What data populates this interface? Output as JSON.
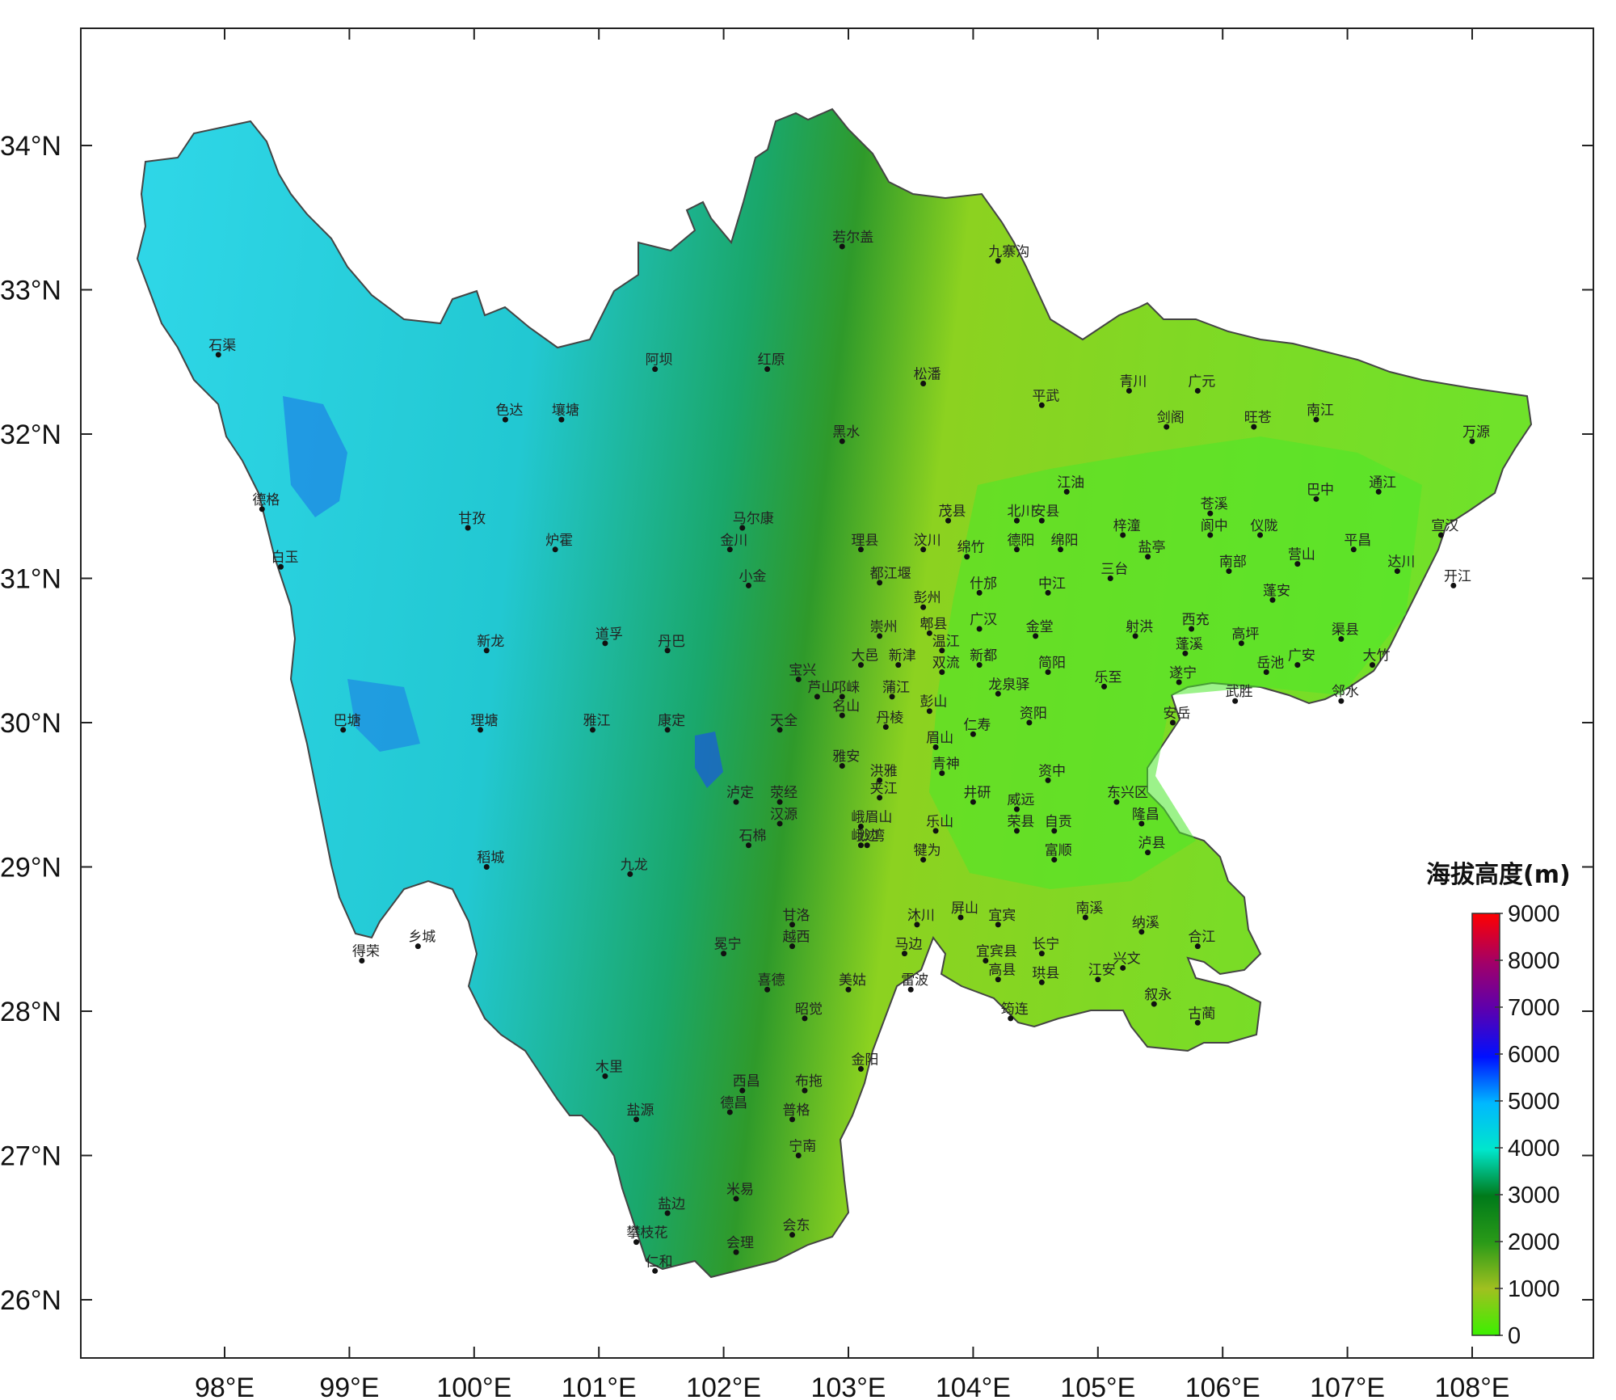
{
  "map": {
    "latitude_labels": [
      "34°N",
      "33°N",
      "32°N",
      "31°N",
      "30°N",
      "29°N",
      "28°N",
      "27°N",
      "26°N"
    ],
    "longitude_labels": [
      "98°E",
      "99°E",
      "100°E",
      "101°E",
      "102°E",
      "103°E",
      "104°E",
      "105°E",
      "106°E",
      "107°E",
      "108°E"
    ],
    "legend": {
      "title": "海拔高度(m)",
      "ticks": [
        "9000",
        "8000",
        "7000",
        "6000",
        "5000",
        "4000",
        "3000",
        "2000",
        "1000",
        "0"
      ],
      "colors": [
        "#ff0000",
        "#a0006a",
        "#5a00b0",
        "#0010ff",
        "#00b8ff",
        "#00e6cc",
        "#007a1a",
        "#2a9a18",
        "#a0c020",
        "#3cf000"
      ]
    },
    "place_labels": [
      {
        "name": "石渠",
        "lon": 97.95,
        "lat": 32.55
      },
      {
        "name": "德格",
        "lon": 98.3,
        "lat": 31.48
      },
      {
        "name": "白玉",
        "lon": 98.45,
        "lat": 31.08
      },
      {
        "name": "色达",
        "lon": 100.25,
        "lat": 32.1
      },
      {
        "name": "壤塘",
        "lon": 100.7,
        "lat": 32.1
      },
      {
        "name": "阿坝",
        "lon": 101.45,
        "lat": 32.45
      },
      {
        "name": "红原",
        "lon": 102.35,
        "lat": 32.45
      },
      {
        "name": "若尔盖",
        "lon": 102.95,
        "lat": 33.3
      },
      {
        "name": "九寨沟",
        "lon": 104.2,
        "lat": 33.2
      },
      {
        "name": "松潘",
        "lon": 103.6,
        "lat": 32.35
      },
      {
        "name": "黑水",
        "lon": 102.95,
        "lat": 31.95
      },
      {
        "name": "平武",
        "lon": 104.55,
        "lat": 32.2
      },
      {
        "name": "青川",
        "lon": 105.25,
        "lat": 32.3
      },
      {
        "name": "广元",
        "lon": 105.8,
        "lat": 32.3
      },
      {
        "name": "剑阁",
        "lon": 105.55,
        "lat": 32.05
      },
      {
        "name": "旺苍",
        "lon": 106.25,
        "lat": 32.05
      },
      {
        "name": "南江",
        "lon": 106.75,
        "lat": 32.1
      },
      {
        "name": "万源",
        "lon": 108.0,
        "lat": 31.95
      },
      {
        "name": "甘孜",
        "lon": 99.95,
        "lat": 31.35
      },
      {
        "name": "炉霍",
        "lon": 100.65,
        "lat": 31.2
      },
      {
        "name": "马尔康",
        "lon": 102.15,
        "lat": 31.35
      },
      {
        "name": "金川",
        "lon": 102.05,
        "lat": 31.2
      },
      {
        "name": "理县",
        "lon": 103.1,
        "lat": 31.2
      },
      {
        "name": "茂县",
        "lon": 103.8,
        "lat": 31.4
      },
      {
        "name": "汶川",
        "lon": 103.6,
        "lat": 31.2
      },
      {
        "name": "北川",
        "lon": 104.35,
        "lat": 31.4
      },
      {
        "name": "江油",
        "lon": 104.75,
        "lat": 31.6
      },
      {
        "name": "安县",
        "lon": 104.55,
        "lat": 31.4
      },
      {
        "name": "梓潼",
        "lon": 105.2,
        "lat": 31.3
      },
      {
        "name": "苍溪",
        "lon": 105.9,
        "lat": 31.45
      },
      {
        "name": "阆中",
        "lon": 105.9,
        "lat": 31.3
      },
      {
        "name": "巴中",
        "lon": 106.75,
        "lat": 31.55
      },
      {
        "name": "通江",
        "lon": 107.25,
        "lat": 31.6
      },
      {
        "name": "仪陇",
        "lon": 106.3,
        "lat": 31.3
      },
      {
        "name": "平昌",
        "lon": 107.05,
        "lat": 31.2
      },
      {
        "name": "宣汉",
        "lon": 107.75,
        "lat": 31.3
      },
      {
        "name": "德阳",
        "lon": 104.35,
        "lat": 31.2
      },
      {
        "name": "绵阳",
        "lon": 104.7,
        "lat": 31.2
      },
      {
        "name": "盐亭",
        "lon": 105.4,
        "lat": 31.15
      },
      {
        "name": "南部",
        "lon": 106.05,
        "lat": 31.05
      },
      {
        "name": "营山",
        "lon": 106.6,
        "lat": 31.1
      },
      {
        "name": "达川",
        "lon": 107.4,
        "lat": 31.05
      },
      {
        "name": "开江",
        "lon": 107.85,
        "lat": 30.95
      },
      {
        "name": "绵竹",
        "lon": 103.95,
        "lat": 31.15
      },
      {
        "name": "三台",
        "lon": 105.1,
        "lat": 31.0
      },
      {
        "name": "什邡",
        "lon": 104.05,
        "lat": 30.9
      },
      {
        "name": "中江",
        "lon": 104.6,
        "lat": 30.9
      },
      {
        "name": "蓬安",
        "lon": 106.4,
        "lat": 30.85
      },
      {
        "name": "小金",
        "lon": 102.2,
        "lat": 30.95
      },
      {
        "name": "都江堰",
        "lon": 103.25,
        "lat": 30.97
      },
      {
        "name": "彭州",
        "lon": 103.6,
        "lat": 30.8
      },
      {
        "name": "新龙",
        "lon": 100.1,
        "lat": 30.5
      },
      {
        "name": "道孚",
        "lon": 101.05,
        "lat": 30.55
      },
      {
        "name": "丹巴",
        "lon": 101.55,
        "lat": 30.5
      },
      {
        "name": "崇州",
        "lon": 103.25,
        "lat": 30.6
      },
      {
        "name": "郫县",
        "lon": 103.65,
        "lat": 30.62
      },
      {
        "name": "广汉",
        "lon": 104.05,
        "lat": 30.65
      },
      {
        "name": "金堂",
        "lon": 104.5,
        "lat": 30.6
      },
      {
        "name": "射洪",
        "lon": 105.3,
        "lat": 30.6
      },
      {
        "name": "西充",
        "lon": 105.75,
        "lat": 30.65
      },
      {
        "name": "蓬溪",
        "lon": 105.7,
        "lat": 30.48
      },
      {
        "name": "高坪",
        "lon": 106.15,
        "lat": 30.55
      },
      {
        "name": "渠县",
        "lon": 106.95,
        "lat": 30.58
      },
      {
        "name": "大竹",
        "lon": 107.2,
        "lat": 30.4
      },
      {
        "name": "温江",
        "lon": 103.75,
        "lat": 30.5
      },
      {
        "name": "大邑",
        "lon": 103.1,
        "lat": 30.4
      },
      {
        "name": "新津",
        "lon": 103.4,
        "lat": 30.4
      },
      {
        "name": "新都",
        "lon": 104.05,
        "lat": 30.4
      },
      {
        "name": "双流",
        "lon": 103.75,
        "lat": 30.35
      },
      {
        "name": "简阳",
        "lon": 104.6,
        "lat": 30.35
      },
      {
        "name": "岳池",
        "lon": 106.35,
        "lat": 30.35
      },
      {
        "name": "广安",
        "lon": 106.6,
        "lat": 30.4
      },
      {
        "name": "宝兴",
        "lon": 102.6,
        "lat": 30.3
      },
      {
        "name": "芦山",
        "lon": 102.75,
        "lat": 30.18
      },
      {
        "name": "邛崃",
        "lon": 102.95,
        "lat": 30.18
      },
      {
        "name": "蒲江",
        "lon": 103.35,
        "lat": 30.18
      },
      {
        "name": "龙泉驿",
        "lon": 104.2,
        "lat": 30.2
      },
      {
        "name": "乐至",
        "lon": 105.05,
        "lat": 30.25
      },
      {
        "name": "遂宁",
        "lon": 105.65,
        "lat": 30.28
      },
      {
        "name": "武胜",
        "lon": 106.1,
        "lat": 30.15
      },
      {
        "name": "邻水",
        "lon": 106.95,
        "lat": 30.15
      },
      {
        "name": "名山",
        "lon": 102.95,
        "lat": 30.05
      },
      {
        "name": "彭山",
        "lon": 103.65,
        "lat": 30.08
      },
      {
        "name": "丹棱",
        "lon": 103.3,
        "lat": 29.97
      },
      {
        "name": "资阳",
        "lon": 104.45,
        "lat": 30.0
      },
      {
        "name": "安岳",
        "lon": 105.6,
        "lat": 30.0
      },
      {
        "name": "巴塘",
        "lon": 98.95,
        "lat": 29.95
      },
      {
        "name": "理塘",
        "lon": 100.05,
        "lat": 29.95
      },
      {
        "name": "雅江",
        "lon": 100.95,
        "lat": 29.95
      },
      {
        "name": "康定",
        "lon": 101.55,
        "lat": 29.95
      },
      {
        "name": "天全",
        "lon": 102.45,
        "lat": 29.95
      },
      {
        "name": "仁寿",
        "lon": 104.0,
        "lat": 29.92
      },
      {
        "name": "眉山",
        "lon": 103.7,
        "lat": 29.83
      },
      {
        "name": "雅安",
        "lon": 102.95,
        "lat": 29.7
      },
      {
        "name": "洪雅",
        "lon": 103.25,
        "lat": 29.6
      },
      {
        "name": "青神",
        "lon": 103.75,
        "lat": 29.65
      },
      {
        "name": "资中",
        "lon": 104.6,
        "lat": 29.6
      },
      {
        "name": "泸定",
        "lon": 102.1,
        "lat": 29.45
      },
      {
        "name": "荥经",
        "lon": 102.45,
        "lat": 29.45
      },
      {
        "name": "夹江",
        "lon": 103.25,
        "lat": 29.48
      },
      {
        "name": "井研",
        "lon": 104.0,
        "lat": 29.45
      },
      {
        "name": "威远",
        "lon": 104.35,
        "lat": 29.4
      },
      {
        "name": "东兴区",
        "lon": 105.15,
        "lat": 29.45
      },
      {
        "name": "汉源",
        "lon": 102.45,
        "lat": 29.3
      },
      {
        "name": "峨边",
        "lon": 103.1,
        "lat": 29.15
      },
      {
        "name": "峨眉山",
        "lon": 103.1,
        "lat": 29.28
      },
      {
        "name": "乐山",
        "lon": 103.7,
        "lat": 29.25
      },
      {
        "name": "荣县",
        "lon": 104.35,
        "lat": 29.25
      },
      {
        "name": "自贡",
        "lon": 104.65,
        "lat": 29.25
      },
      {
        "name": "隆昌",
        "lon": 105.35,
        "lat": 29.3
      },
      {
        "name": "富顺",
        "lon": 104.65,
        "lat": 29.05
      },
      {
        "name": "沙湾",
        "lon": 103.15,
        "lat": 29.15
      },
      {
        "name": "犍为",
        "lon": 103.6,
        "lat": 29.05
      },
      {
        "name": "泸县",
        "lon": 105.4,
        "lat": 29.1
      },
      {
        "name": "稻城",
        "lon": 100.1,
        "lat": 29.0
      },
      {
        "name": "九龙",
        "lon": 101.25,
        "lat": 28.95
      },
      {
        "name": "石棉",
        "lon": 102.2,
        "lat": 29.15
      },
      {
        "name": "南溪",
        "lon": 104.9,
        "lat": 28.65
      },
      {
        "name": "沐川",
        "lon": 103.55,
        "lat": 28.6
      },
      {
        "name": "屏山",
        "lon": 103.9,
        "lat": 28.65
      },
      {
        "name": "宜宾",
        "lon": 104.2,
        "lat": 28.6
      },
      {
        "name": "甘洛",
        "lon": 102.55,
        "lat": 28.6
      },
      {
        "name": "乡城",
        "lon": 99.55,
        "lat": 28.45
      },
      {
        "name": "得荣",
        "lon": 99.1,
        "lat": 28.35
      },
      {
        "name": "纳溪",
        "lon": 105.35,
        "lat": 28.55
      },
      {
        "name": "合江",
        "lon": 105.8,
        "lat": 28.45
      },
      {
        "name": "越西",
        "lon": 102.55,
        "lat": 28.45
      },
      {
        "name": "马边",
        "lon": 103.45,
        "lat": 28.4
      },
      {
        "name": "长宁",
        "lon": 104.55,
        "lat": 28.4
      },
      {
        "name": "宜宾县",
        "lon": 104.1,
        "lat": 28.35
      },
      {
        "name": "兴文",
        "lon": 105.2,
        "lat": 28.3
      },
      {
        "name": "冕宁",
        "lon": 102.0,
        "lat": 28.4
      },
      {
        "name": "高县",
        "lon": 104.2,
        "lat": 28.22
      },
      {
        "name": "珙县",
        "lon": 104.55,
        "lat": 28.2
      },
      {
        "name": "江安",
        "lon": 105.0,
        "lat": 28.22
      },
      {
        "name": "喜德",
        "lon": 102.35,
        "lat": 28.15
      },
      {
        "name": "美姑",
        "lon": 103.0,
        "lat": 28.15
      },
      {
        "name": "雷波",
        "lon": 103.5,
        "lat": 28.15
      },
      {
        "name": "叙永",
        "lon": 105.45,
        "lat": 28.05
      },
      {
        "name": "昭觉",
        "lon": 102.65,
        "lat": 27.95
      },
      {
        "name": "筠连",
        "lon": 104.3,
        "lat": 27.95
      },
      {
        "name": "古蔺",
        "lon": 105.8,
        "lat": 27.92
      },
      {
        "name": "木里",
        "lon": 101.05,
        "lat": 27.55
      },
      {
        "name": "西昌",
        "lon": 102.15,
        "lat": 27.45
      },
      {
        "name": "布拖",
        "lon": 102.65,
        "lat": 27.45
      },
      {
        "name": "金阳",
        "lon": 103.1,
        "lat": 27.6
      },
      {
        "name": "盐源",
        "lon": 101.3,
        "lat": 27.25
      },
      {
        "name": "德昌",
        "lon": 102.05,
        "lat": 27.3
      },
      {
        "name": "普格",
        "lon": 102.55,
        "lat": 27.25
      },
      {
        "name": "宁南",
        "lon": 102.6,
        "lat": 27.0
      },
      {
        "name": "米易",
        "lon": 102.1,
        "lat": 26.7
      },
      {
        "name": "盐边",
        "lon": 101.55,
        "lat": 26.6
      },
      {
        "name": "攀枝花",
        "lon": 101.3,
        "lat": 26.4
      },
      {
        "name": "会东",
        "lon": 102.55,
        "lat": 26.45
      },
      {
        "name": "会理",
        "lon": 102.1,
        "lat": 26.33
      },
      {
        "name": "仁和",
        "lon": 101.45,
        "lat": 26.2
      }
    ]
  }
}
